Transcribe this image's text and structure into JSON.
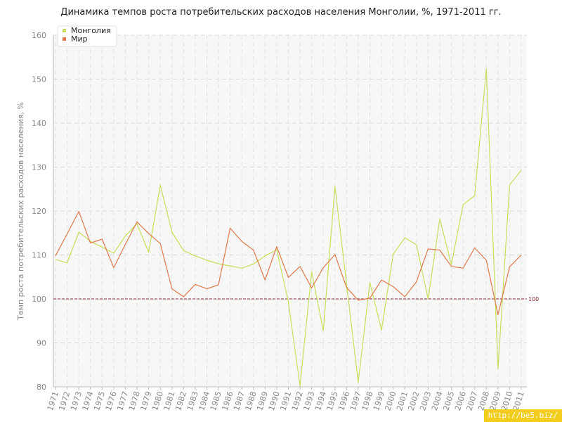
{
  "chart_data": {
    "type": "line",
    "title": "Динамика темпов роста потребительских расходов населения Монголии, %, 1971-2011 гг.",
    "ylabel": "Темп роста потребительских расходов населения, %",
    "xlabel": "",
    "ylim": [
      80,
      160
    ],
    "yticks": [
      80,
      90,
      100,
      110,
      120,
      130,
      140,
      150,
      160
    ],
    "x": [
      "1971",
      "1972",
      "1973",
      "1974",
      "1975",
      "1976",
      "1977",
      "1978",
      "1979",
      "1980",
      "1981",
      "1982",
      "1983",
      "1984",
      "1985",
      "1986",
      "1987",
      "1988",
      "1989",
      "1990",
      "1991",
      "1992",
      "1993",
      "1994",
      "1995",
      "1996",
      "1997",
      "1998",
      "1999",
      "2000",
      "2001",
      "2002",
      "2003",
      "2004",
      "2005",
      "2006",
      "2007",
      "2008",
      "2009",
      "2010",
      "2011"
    ],
    "series": [
      {
        "name": "Монголия",
        "color": "#c5e05a",
        "values": [
          109.0,
          108.2,
          115.2,
          113.1,
          111.8,
          110.4,
          114.3,
          117.1,
          110.6,
          125.9,
          115.2,
          111.0,
          109.8,
          108.8,
          108.0,
          107.5,
          107.0,
          107.9,
          109.8,
          111.2,
          99.3,
          80.2,
          106.2,
          92.8,
          125.6,
          103.3,
          81.0,
          103.7,
          92.9,
          110.2,
          113.9,
          112.3,
          100.0,
          118.2,
          107.8,
          121.4,
          123.5,
          152.4,
          84.1,
          125.9,
          129.3
        ]
      },
      {
        "name": "Мир",
        "color": "#e07a4a",
        "values": [
          109.8,
          114.8,
          119.9,
          112.7,
          113.6,
          107.1,
          112.4,
          117.5,
          114.9,
          112.6,
          102.3,
          100.5,
          103.3,
          102.3,
          103.2,
          116.1,
          113.1,
          111.1,
          104.3,
          111.9,
          104.9,
          107.4,
          102.5,
          107.1,
          110.1,
          102.6,
          99.7,
          100.2,
          104.3,
          102.8,
          100.5,
          103.9,
          111.4,
          111.1,
          107.4,
          107.0,
          111.6,
          108.8,
          96.4,
          107.3,
          110.0
        ]
      }
    ],
    "reference_line": {
      "value": 100,
      "label": "100",
      "color": "#8b2a35"
    },
    "legend": "top-left",
    "grid": true
  },
  "watermark": "http://be5.biz/"
}
